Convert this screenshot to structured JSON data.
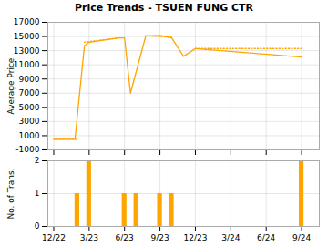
{
  "chart_data": [
    {
      "type": "line",
      "title": "Price Trends - TSUEN FUNG CTR",
      "ylabel": "Average Price",
      "xlim": [
        -0.5,
        22.5
      ],
      "xticks": [
        0,
        3,
        6,
        9,
        12,
        15,
        18,
        21
      ],
      "ylim": [
        -1000,
        17000
      ],
      "yticks": [
        -1000,
        1000,
        3000,
        5000,
        7000,
        9000,
        11000,
        13000,
        15000,
        17000
      ],
      "grid": true,
      "tick_labels": "y",
      "series": [
        {
          "x": [
            0,
            1.8,
            2.6,
            3.0,
            5.5,
            6.0,
            6.5,
            7.8,
            9.0,
            10.0,
            11.0,
            12.0,
            21.0
          ],
          "values": [
            500,
            500,
            13700,
            14200,
            14800,
            14800,
            7000,
            15100,
            15150,
            14800,
            12200,
            13300,
            12100
          ],
          "color": "#FFA500",
          "line_style": "solid"
        },
        {
          "x": [
            0,
            2.0
          ],
          "values": [
            500,
            500
          ],
          "color": "#FFA500",
          "line_style": "dotted"
        },
        {
          "x": [
            2.6,
            5.5
          ],
          "values": [
            14200,
            14800
          ],
          "color": "#FFA500",
          "line_style": "dotted"
        },
        {
          "x": [
            7.8,
            10.0
          ],
          "values": [
            15100,
            14900
          ],
          "color": "#FFA500",
          "line_style": "dotted"
        },
        {
          "x": [
            12.0,
            21.0
          ],
          "values": [
            13300,
            13300
          ],
          "color": "#FFA500",
          "line_style": "dotted"
        }
      ]
    },
    {
      "type": "bar",
      "ylabel": "No. of Trans.",
      "x": [
        2,
        3,
        6,
        7,
        9,
        10,
        21
      ],
      "values": [
        1,
        2,
        1,
        1,
        1,
        1,
        2
      ],
      "color": "#FFA500",
      "xlim": [
        -0.5,
        22.5
      ],
      "xticks": [
        {
          "value": 0,
          "label": "12/22"
        },
        {
          "value": 3,
          "label": "3/23"
        },
        {
          "value": 6,
          "label": "6/23"
        },
        {
          "value": 9,
          "label": "9/23"
        },
        {
          "value": 12,
          "label": "12/23"
        },
        {
          "value": 15,
          "label": "3/24"
        },
        {
          "value": 18,
          "label": "6/24"
        },
        {
          "value": 21,
          "label": "9/24"
        }
      ],
      "ylim": [
        0,
        2
      ],
      "yticks": [
        0,
        1,
        2
      ],
      "grid": true
    }
  ]
}
